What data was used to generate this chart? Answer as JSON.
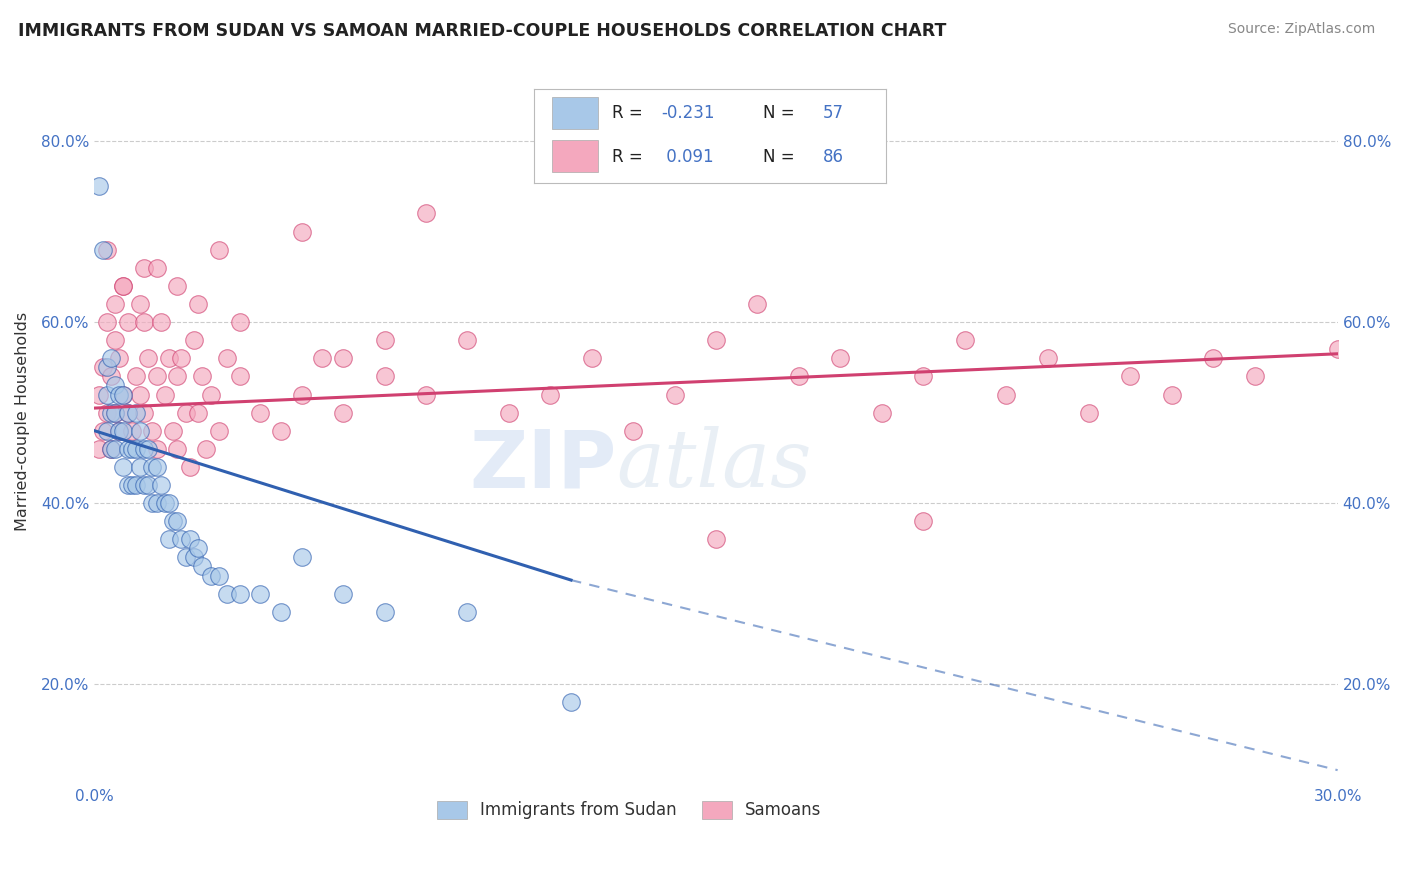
{
  "title": "IMMIGRANTS FROM SUDAN VS SAMOAN MARRIED-COUPLE HOUSEHOLDS CORRELATION CHART",
  "source": "Source: ZipAtlas.com",
  "ylabel": "Married-couple Households",
  "legend_label1": "Immigrants from Sudan",
  "legend_label2": "Samoans",
  "R1": -0.231,
  "N1": 57,
  "R2": 0.091,
  "N2": 86,
  "color_blue": "#a8c8e8",
  "color_pink": "#f4a8be",
  "color_blue_line": "#3060b0",
  "color_pink_line": "#d04070",
  "xlim": [
    0.0,
    0.3
  ],
  "ylim": [
    0.09,
    0.89
  ],
  "x_ticks": [
    0.0,
    0.05,
    0.1,
    0.15,
    0.2,
    0.25,
    0.3
  ],
  "x_tick_labels": [
    "0.0%",
    "",
    "",
    "",
    "",
    "",
    "30.0%"
  ],
  "y_ticks": [
    0.2,
    0.4,
    0.6,
    0.8
  ],
  "watermark": "ZIPatlas",
  "blue_line_x0": 0.0,
  "blue_line_y0": 0.48,
  "blue_line_x1_solid": 0.115,
  "blue_line_y1_solid": 0.315,
  "blue_line_x1_dash": 0.3,
  "blue_line_y1_dash": 0.105,
  "pink_line_x0": 0.0,
  "pink_line_y0": 0.505,
  "pink_line_x1": 0.3,
  "pink_line_y1": 0.565,
  "blue_scatter_x": [
    0.001,
    0.002,
    0.003,
    0.003,
    0.003,
    0.004,
    0.004,
    0.004,
    0.005,
    0.005,
    0.005,
    0.006,
    0.006,
    0.007,
    0.007,
    0.007,
    0.008,
    0.008,
    0.008,
    0.009,
    0.009,
    0.01,
    0.01,
    0.01,
    0.011,
    0.011,
    0.012,
    0.012,
    0.013,
    0.013,
    0.014,
    0.014,
    0.015,
    0.015,
    0.016,
    0.017,
    0.018,
    0.018,
    0.019,
    0.02,
    0.021,
    0.022,
    0.023,
    0.024,
    0.025,
    0.026,
    0.028,
    0.03,
    0.032,
    0.035,
    0.04,
    0.045,
    0.05,
    0.06,
    0.07,
    0.09,
    0.115
  ],
  "blue_scatter_y": [
    0.75,
    0.68,
    0.55,
    0.52,
    0.48,
    0.56,
    0.5,
    0.46,
    0.53,
    0.5,
    0.46,
    0.52,
    0.48,
    0.52,
    0.48,
    0.44,
    0.5,
    0.46,
    0.42,
    0.46,
    0.42,
    0.5,
    0.46,
    0.42,
    0.48,
    0.44,
    0.46,
    0.42,
    0.46,
    0.42,
    0.44,
    0.4,
    0.44,
    0.4,
    0.42,
    0.4,
    0.4,
    0.36,
    0.38,
    0.38,
    0.36,
    0.34,
    0.36,
    0.34,
    0.35,
    0.33,
    0.32,
    0.32,
    0.3,
    0.3,
    0.3,
    0.28,
    0.34,
    0.3,
    0.28,
    0.28,
    0.18
  ],
  "pink_scatter_x": [
    0.001,
    0.001,
    0.002,
    0.002,
    0.003,
    0.003,
    0.004,
    0.004,
    0.005,
    0.005,
    0.006,
    0.006,
    0.007,
    0.007,
    0.008,
    0.008,
    0.009,
    0.01,
    0.011,
    0.011,
    0.012,
    0.012,
    0.013,
    0.014,
    0.015,
    0.015,
    0.016,
    0.017,
    0.018,
    0.019,
    0.02,
    0.02,
    0.021,
    0.022,
    0.023,
    0.024,
    0.025,
    0.026,
    0.027,
    0.028,
    0.03,
    0.032,
    0.035,
    0.04,
    0.045,
    0.05,
    0.055,
    0.06,
    0.07,
    0.08,
    0.09,
    0.1,
    0.11,
    0.12,
    0.13,
    0.14,
    0.15,
    0.16,
    0.17,
    0.18,
    0.19,
    0.2,
    0.21,
    0.22,
    0.23,
    0.24,
    0.25,
    0.26,
    0.27,
    0.28,
    0.3,
    0.003,
    0.007,
    0.012,
    0.02,
    0.03,
    0.05,
    0.08,
    0.005,
    0.015,
    0.025,
    0.035,
    0.06,
    0.07,
    0.15,
    0.2
  ],
  "pink_scatter_y": [
    0.52,
    0.46,
    0.55,
    0.48,
    0.6,
    0.5,
    0.54,
    0.46,
    0.58,
    0.5,
    0.56,
    0.48,
    0.64,
    0.52,
    0.6,
    0.5,
    0.48,
    0.54,
    0.62,
    0.52,
    0.6,
    0.5,
    0.56,
    0.48,
    0.54,
    0.46,
    0.6,
    0.52,
    0.56,
    0.48,
    0.54,
    0.46,
    0.56,
    0.5,
    0.44,
    0.58,
    0.5,
    0.54,
    0.46,
    0.52,
    0.48,
    0.56,
    0.54,
    0.5,
    0.48,
    0.52,
    0.56,
    0.5,
    0.54,
    0.52,
    0.58,
    0.5,
    0.52,
    0.56,
    0.48,
    0.52,
    0.58,
    0.62,
    0.54,
    0.56,
    0.5,
    0.54,
    0.58,
    0.52,
    0.56,
    0.5,
    0.54,
    0.52,
    0.56,
    0.54,
    0.57,
    0.68,
    0.64,
    0.66,
    0.64,
    0.68,
    0.7,
    0.72,
    0.62,
    0.66,
    0.62,
    0.6,
    0.56,
    0.58,
    0.36,
    0.38
  ]
}
